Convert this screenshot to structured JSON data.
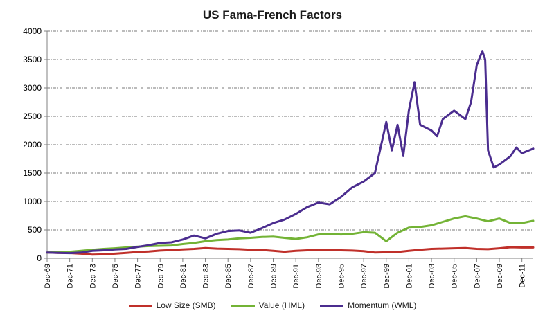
{
  "chart_data": {
    "type": "line",
    "title": "US Fama-French Factors",
    "xlabel": "",
    "ylabel": "",
    "ylim": [
      0,
      4000
    ],
    "y_ticks": [
      "0",
      "500",
      "1000",
      "1500",
      "2000",
      "2500",
      "3000",
      "3500",
      "4000"
    ],
    "x_ticks": [
      "Dec-69",
      "Dec-71",
      "Dec-73",
      "Dec-75",
      "Dec-77",
      "Dec-79",
      "Dec-81",
      "Dec-83",
      "Dec-85",
      "Dec-87",
      "Dec-89",
      "Dec-91",
      "Dec-93",
      "Dec-95",
      "Dec-97",
      "Dec-99",
      "Dec-01",
      "Dec-03",
      "Dec-05",
      "Dec-07",
      "Dec-09",
      "Dec-11"
    ],
    "x_range": [
      "Dec-69",
      "Dec-12"
    ],
    "grid": "horizontal dashed",
    "legend_position": "bottom",
    "series": [
      {
        "name": "Low Size (SMB)",
        "color": "#c0302a",
        "points": [
          [
            "Dec-69",
            100
          ],
          [
            "Dec-70",
            95
          ],
          [
            "Dec-71",
            92
          ],
          [
            "Dec-72",
            80
          ],
          [
            "Dec-73",
            65
          ],
          [
            "Dec-74",
            68
          ],
          [
            "Dec-75",
            80
          ],
          [
            "Dec-76",
            95
          ],
          [
            "Dec-77",
            110
          ],
          [
            "Dec-78",
            120
          ],
          [
            "Dec-79",
            135
          ],
          [
            "Dec-80",
            145
          ],
          [
            "Dec-81",
            155
          ],
          [
            "Dec-82",
            165
          ],
          [
            "Dec-83",
            180
          ],
          [
            "Dec-84",
            170
          ],
          [
            "Dec-85",
            165
          ],
          [
            "Dec-86",
            160
          ],
          [
            "Dec-87",
            150
          ],
          [
            "Dec-88",
            145
          ],
          [
            "Dec-89",
            130
          ],
          [
            "Dec-90",
            115
          ],
          [
            "Dec-91",
            130
          ],
          [
            "Dec-92",
            140
          ],
          [
            "Dec-93",
            150
          ],
          [
            "Dec-94",
            145
          ],
          [
            "Dec-95",
            140
          ],
          [
            "Dec-96",
            135
          ],
          [
            "Dec-97",
            125
          ],
          [
            "Dec-98",
            100
          ],
          [
            "Dec-99",
            105
          ],
          [
            "Dec-00",
            110
          ],
          [
            "Dec-01",
            130
          ],
          [
            "Dec-02",
            150
          ],
          [
            "Dec-03",
            165
          ],
          [
            "Dec-04",
            170
          ],
          [
            "Dec-05",
            175
          ],
          [
            "Dec-06",
            180
          ],
          [
            "Dec-07",
            165
          ],
          [
            "Dec-08",
            160
          ],
          [
            "Dec-09",
            175
          ],
          [
            "Dec-10",
            195
          ],
          [
            "Dec-11",
            190
          ],
          [
            "Dec-12",
            190
          ]
        ]
      },
      {
        "name": "Value (HML)",
        "color": "#73b335",
        "points": [
          [
            "Dec-69",
            100
          ],
          [
            "Dec-70",
            110
          ],
          [
            "Dec-71",
            115
          ],
          [
            "Dec-72",
            130
          ],
          [
            "Dec-73",
            150
          ],
          [
            "Dec-74",
            165
          ],
          [
            "Dec-75",
            175
          ],
          [
            "Dec-76",
            190
          ],
          [
            "Dec-77",
            205
          ],
          [
            "Dec-78",
            215
          ],
          [
            "Dec-79",
            220
          ],
          [
            "Dec-80",
            225
          ],
          [
            "Dec-81",
            250
          ],
          [
            "Dec-82",
            270
          ],
          [
            "Dec-83",
            300
          ],
          [
            "Dec-84",
            320
          ],
          [
            "Dec-85",
            330
          ],
          [
            "Dec-86",
            350
          ],
          [
            "Dec-87",
            360
          ],
          [
            "Dec-88",
            375
          ],
          [
            "Dec-89",
            380
          ],
          [
            "Dec-90",
            360
          ],
          [
            "Dec-91",
            340
          ],
          [
            "Dec-92",
            370
          ],
          [
            "Dec-93",
            420
          ],
          [
            "Dec-94",
            430
          ],
          [
            "Dec-95",
            420
          ],
          [
            "Dec-96",
            430
          ],
          [
            "Dec-97",
            460
          ],
          [
            "Dec-98",
            450
          ],
          [
            "Dec-99",
            300
          ],
          [
            "Dec-00",
            450
          ],
          [
            "Dec-01",
            540
          ],
          [
            "Dec-02",
            550
          ],
          [
            "Dec-03",
            580
          ],
          [
            "Dec-04",
            640
          ],
          [
            "Dec-05",
            700
          ],
          [
            "Dec-06",
            740
          ],
          [
            "Dec-07",
            700
          ],
          [
            "Dec-08",
            650
          ],
          [
            "Dec-09",
            700
          ],
          [
            "Dec-10",
            620
          ],
          [
            "Dec-11",
            620
          ],
          [
            "Dec-12",
            660
          ]
        ]
      },
      {
        "name": "Momentum (WML)",
        "color": "#4b2d8f",
        "points": [
          [
            "Dec-69",
            100
          ],
          [
            "Dec-70",
            95
          ],
          [
            "Dec-71",
            90
          ],
          [
            "Dec-72",
            100
          ],
          [
            "Dec-73",
            130
          ],
          [
            "Dec-74",
            140
          ],
          [
            "Dec-75",
            155
          ],
          [
            "Dec-76",
            165
          ],
          [
            "Dec-77",
            200
          ],
          [
            "Dec-78",
            230
          ],
          [
            "Dec-79",
            270
          ],
          [
            "Dec-80",
            280
          ],
          [
            "Dec-81",
            330
          ],
          [
            "Dec-82",
            400
          ],
          [
            "Dec-83",
            350
          ],
          [
            "Dec-84",
            430
          ],
          [
            "Dec-85",
            480
          ],
          [
            "Dec-86",
            490
          ],
          [
            "Dec-87",
            450
          ],
          [
            "Dec-88",
            530
          ],
          [
            "Dec-89",
            620
          ],
          [
            "Dec-90",
            680
          ],
          [
            "Dec-91",
            780
          ],
          [
            "Dec-92",
            900
          ],
          [
            "Dec-93",
            980
          ],
          [
            "Dec-94",
            950
          ],
          [
            "Dec-95",
            1080
          ],
          [
            "Dec-96",
            1250
          ],
          [
            "Dec-97",
            1350
          ],
          [
            "Dec-98",
            1500
          ],
          [
            "Dec-99",
            2400
          ],
          [
            "Jun-00",
            1900
          ],
          [
            "Dec-00",
            2350
          ],
          [
            "Jun-01",
            1800
          ],
          [
            "Dec-01",
            2600
          ],
          [
            "Jun-02",
            3100
          ],
          [
            "Dec-02",
            2350
          ],
          [
            "Dec-03",
            2250
          ],
          [
            "Jun-04",
            2150
          ],
          [
            "Dec-04",
            2450
          ],
          [
            "Dec-05",
            2600
          ],
          [
            "Dec-06",
            2450
          ],
          [
            "Jun-07",
            2750
          ],
          [
            "Dec-07",
            3400
          ],
          [
            "Jun-08",
            3650
          ],
          [
            "Sep-08",
            3500
          ],
          [
            "Dec-08",
            1900
          ],
          [
            "Jun-09",
            1600
          ],
          [
            "Dec-09",
            1650
          ],
          [
            "Dec-10",
            1800
          ],
          [
            "Jun-11",
            1950
          ],
          [
            "Dec-11",
            1850
          ],
          [
            "Dec-12",
            1930
          ]
        ]
      }
    ]
  }
}
